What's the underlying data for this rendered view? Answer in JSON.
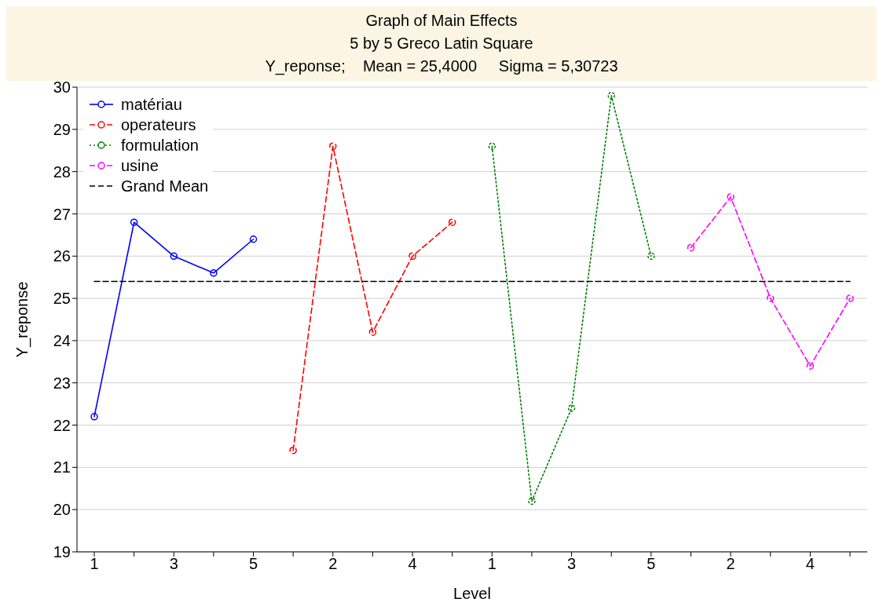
{
  "chart_data": {
    "type": "line",
    "title": "Graph of Main Effects",
    "subtitle": "5 by 5 Greco Latin Square",
    "annotations": [
      "Y_reponse;    Mean = 25,4000     Sigma = 5,30723"
    ],
    "xlabel": "Level",
    "ylabel": "Y_reponse",
    "categories": [
      "1",
      null,
      "3",
      null,
      "5",
      null,
      "2",
      null,
      "4",
      null,
      "1",
      null,
      "3",
      null,
      "5",
      null,
      "2",
      null,
      "4",
      null
    ],
    "ylim": [
      19,
      30
    ],
    "yticks": [
      19,
      20,
      21,
      22,
      23,
      24,
      25,
      26,
      27,
      28,
      29,
      30
    ],
    "grid": "y",
    "legend": "top left",
    "marker": "circle",
    "series": [
      {
        "name": "matériau",
        "color": "#0000ff",
        "line_style": "solid",
        "values": [
          22.2,
          26.8,
          26.0,
          25.6,
          26.4,
          null,
          null,
          null,
          null,
          null,
          null,
          null,
          null,
          null,
          null,
          null,
          null,
          null,
          null,
          null
        ]
      },
      {
        "name": "operateurs",
        "color": "#ff0000",
        "line_style": "dashed",
        "values": [
          null,
          null,
          null,
          null,
          null,
          21.4,
          28.6,
          24.2,
          26.0,
          26.8,
          null,
          null,
          null,
          null,
          null,
          null,
          null,
          null,
          null,
          null
        ]
      },
      {
        "name": "formulation",
        "color": "#008000",
        "line_style": "dotted",
        "values": [
          null,
          null,
          null,
          null,
          null,
          null,
          null,
          null,
          null,
          null,
          28.6,
          20.2,
          22.4,
          29.8,
          26.0,
          null,
          null,
          null,
          null,
          null
        ]
      },
      {
        "name": "usine",
        "color": "#ff00ff",
        "line_style": "dashed",
        "values": [
          null,
          null,
          null,
          null,
          null,
          null,
          null,
          null,
          null,
          null,
          null,
          null,
          null,
          null,
          null,
          26.2,
          27.4,
          25.0,
          23.4,
          25.0
        ]
      },
      {
        "name": "Grand Mean",
        "color": "#000000",
        "line_style": "dashed",
        "marker": "none",
        "values": [
          25.4,
          25.4,
          25.4,
          25.4,
          25.4,
          25.4,
          25.4,
          25.4,
          25.4,
          25.4,
          25.4,
          25.4,
          25.4,
          25.4,
          25.4,
          25.4,
          25.4,
          25.4,
          25.4,
          25.4
        ]
      }
    ]
  }
}
